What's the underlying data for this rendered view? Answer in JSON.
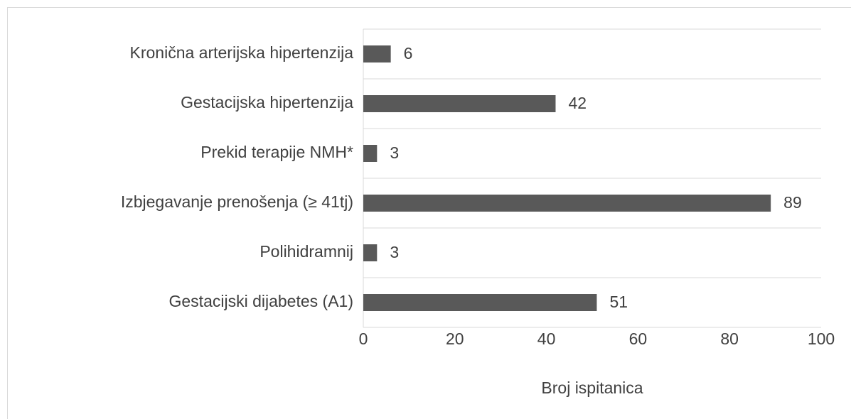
{
  "chart_data": {
    "type": "bar",
    "orientation": "horizontal",
    "categories": [
      "Kronična arterijska hipertenzija",
      "Gestacijska hipertenzija",
      "Prekid terapije NMH*",
      "Izbjegavanje prenošenja (≥ 41tj)",
      "Polihidramnij",
      "Gestacijski dijabetes (A1)"
    ],
    "values": [
      6,
      42,
      3,
      89,
      3,
      51
    ],
    "color": "#595959",
    "xlabel": "Broj ispitanica",
    "xlim": [
      0,
      100
    ],
    "xticks": [
      0,
      20,
      40,
      60,
      80,
      100
    ]
  }
}
